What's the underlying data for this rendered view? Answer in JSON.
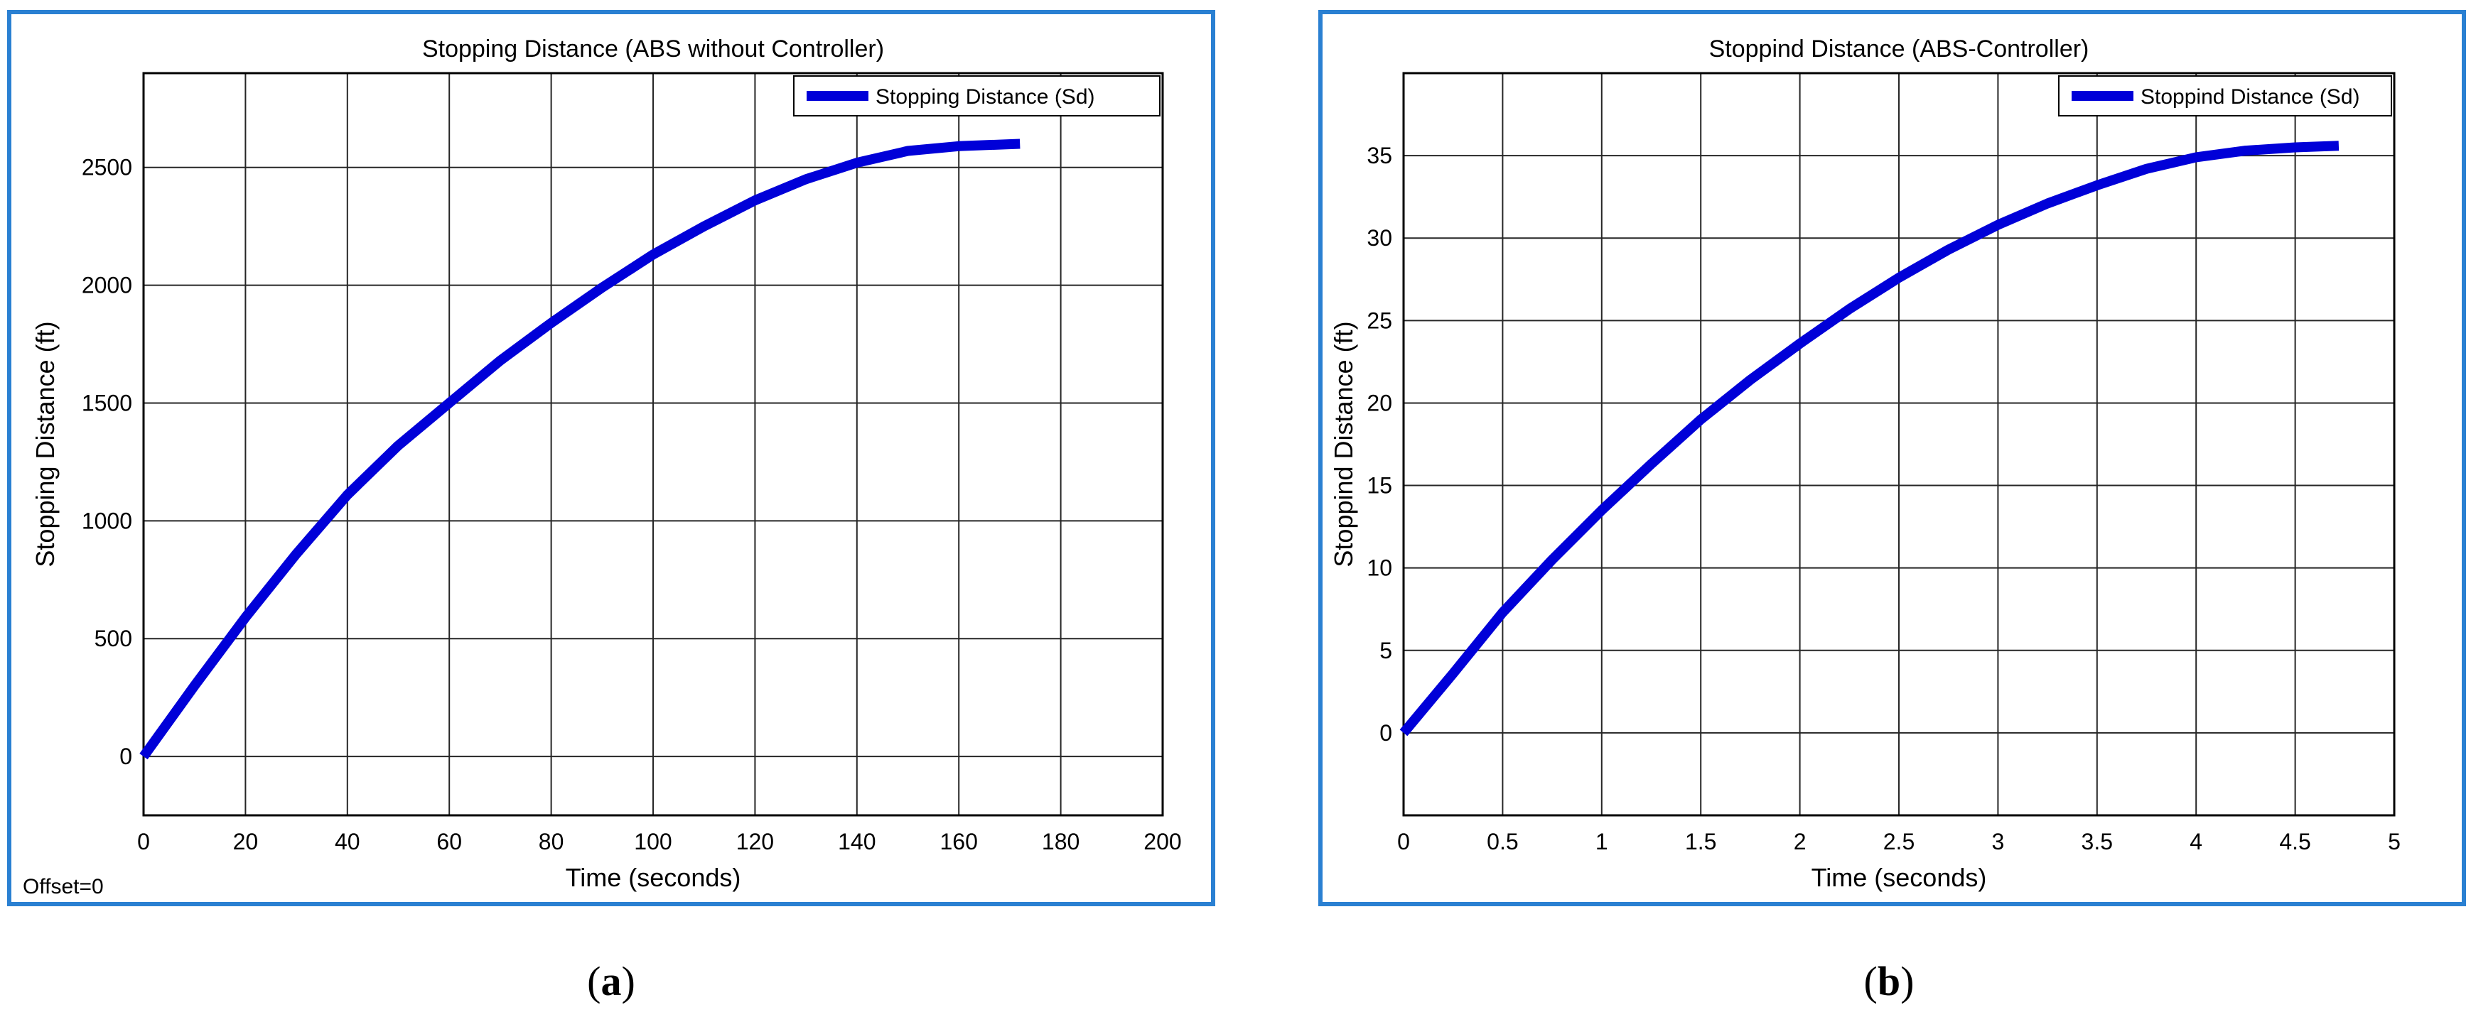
{
  "charts": [
    {
      "id": "a",
      "chart_data": {
        "type": "line",
        "title": "Stopping Distance (ABS without Controller)",
        "xlabel": "Time (seconds)",
        "ylabel": "Stopping Distance (ft)",
        "xlim": [
          0,
          200
        ],
        "ylim": [
          -250,
          2900
        ],
        "xticks": [
          0,
          20,
          40,
          60,
          80,
          100,
          120,
          140,
          160,
          180,
          200
        ],
        "yticks": [
          0,
          500,
          1000,
          1500,
          2000,
          2500
        ],
        "grid": true,
        "legend": "top-right",
        "series": [
          {
            "name": "Stopping Distance (Sd)",
            "color": "#0000d8",
            "x": [
              0,
              10,
              20,
              30,
              40,
              50,
              60,
              70,
              80,
              90,
              100,
              110,
              120,
              130,
              140,
              150,
              160,
              172
            ],
            "y": [
              0,
              300,
              590,
              860,
              1110,
              1320,
              1500,
              1680,
              1840,
              1990,
              2130,
              2250,
              2360,
              2450,
              2520,
              2570,
              2590,
              2600
            ]
          }
        ],
        "annotation": "Offset=0"
      },
      "caption": "a"
    },
    {
      "id": "b",
      "chart_data": {
        "type": "line",
        "title": "Stoppind Distance (ABS-Controller)",
        "xlabel": "Time (seconds)",
        "ylabel": "Stoppind Distance (ft)",
        "xlim": [
          0,
          5
        ],
        "ylim": [
          -5,
          40
        ],
        "xticks": [
          0,
          0.5,
          1,
          1.5,
          2,
          2.5,
          3,
          3.5,
          4,
          4.5,
          5
        ],
        "yticks": [
          0,
          5,
          10,
          15,
          20,
          25,
          30,
          35
        ],
        "grid": true,
        "legend": "top-right",
        "series": [
          {
            "name": "Stoppind Distance (Sd)",
            "color": "#0000d8",
            "x": [
              0,
              0.25,
              0.5,
              0.75,
              1,
              1.25,
              1.5,
              1.75,
              2,
              2.25,
              2.5,
              2.75,
              3,
              3.25,
              3.5,
              3.75,
              4,
              4.25,
              4.5,
              4.72
            ],
            "y": [
              0,
              3.6,
              7.3,
              10.5,
              13.5,
              16.3,
              19,
              21.4,
              23.6,
              25.7,
              27.6,
              29.3,
              30.8,
              32.1,
              33.2,
              34.2,
              34.9,
              35.3,
              35.5,
              35.6
            ]
          }
        ]
      },
      "caption": "b"
    }
  ]
}
